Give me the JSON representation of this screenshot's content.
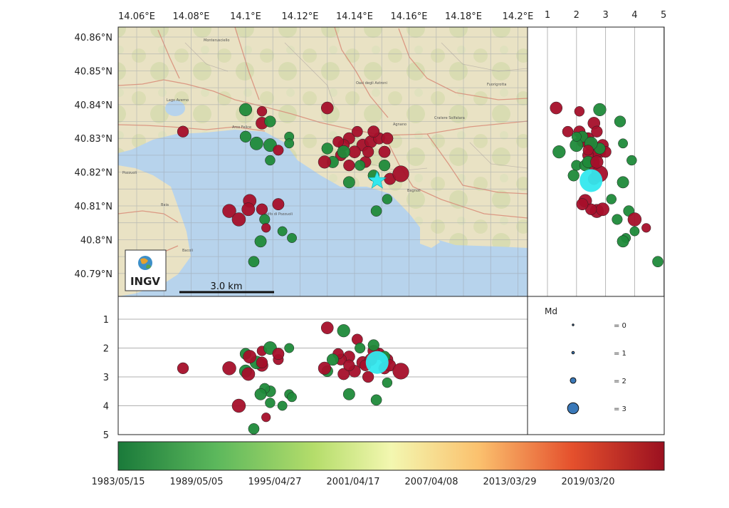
{
  "top_axis": {
    "lon_ticks": [
      "14.06°E",
      "14.08°E",
      "14.1°E",
      "14.12°E",
      "14.14°E",
      "14.16°E",
      "14.18°E",
      "14.2°E"
    ]
  },
  "left_axis": {
    "lat_ticks": [
      "40.86°N",
      "40.85°N",
      "40.84°N",
      "40.83°N",
      "40.82°N",
      "40.81°N",
      "40.8°N",
      "40.79°N"
    ]
  },
  "right_axis": {
    "depth_ticks": [
      "1",
      "2",
      "3",
      "4",
      "5"
    ]
  },
  "bottom_left_axis": {
    "depth_ticks": [
      "1",
      "2",
      "3",
      "4",
      "5"
    ]
  },
  "map": {
    "logo_text": "INGV",
    "scalebar_label": "3.0 km",
    "place_labels": [
      "Monterusciello",
      "Arco Felice",
      "Pozzuoli",
      "Bagnoli",
      "Agnano",
      "Bacoli",
      "Baia",
      "Lago Averno",
      "Cratere Solfatara",
      "Oasi degli Astroni",
      "Fuorigrotta",
      "Golfo di Pozzuoli"
    ]
  },
  "legend": {
    "title": "Md",
    "entries": [
      {
        "label": "= 0",
        "md": 0
      },
      {
        "label": "= 1",
        "md": 1
      },
      {
        "label": "= 2",
        "md": 2
      },
      {
        "label": "= 3",
        "md": 3
      }
    ],
    "marker_color": "#3a78b8"
  },
  "colorbar": {
    "labels": [
      "1983/05/15",
      "1989/05/05",
      "1995/04/27",
      "2001/04/17",
      "2007/04/08",
      "2013/03/29",
      "2019/03/20"
    ],
    "colors": [
      "#1a7a3a",
      "#5cb85c",
      "#b5dd6b",
      "#f3f7b0",
      "#fbc16e",
      "#e5512d",
      "#9b1020"
    ]
  },
  "event_colors": {
    "old": "#1f8a3a",
    "recent": "#a50f2a",
    "mainshock": "#33e8ee"
  },
  "events": [
    {
      "lon": 14.1483,
      "lat": 40.8175,
      "depth": 2.5,
      "md": 3.6,
      "color": "mainshock"
    },
    {
      "lon": 14.143,
      "lat": 40.828,
      "depth": 2.5,
      "md": 2.4,
      "color": "recent"
    },
    {
      "lon": 14.146,
      "lat": 40.829,
      "depth": 2.4,
      "md": 2.4,
      "color": "recent"
    },
    {
      "lon": 14.14,
      "lat": 40.826,
      "depth": 2.8,
      "md": 2.4,
      "color": "recent"
    },
    {
      "lon": 14.149,
      "lat": 40.83,
      "depth": 2.2,
      "md": 2.3,
      "color": "recent"
    },
    {
      "lon": 14.138,
      "lat": 40.83,
      "depth": 2.3,
      "md": 2.3,
      "color": "recent"
    },
    {
      "lon": 14.144,
      "lat": 40.823,
      "depth": 2.6,
      "md": 2.2,
      "color": "recent"
    },
    {
      "lon": 14.151,
      "lat": 40.826,
      "depth": 2.7,
      "md": 2.3,
      "color": "recent"
    },
    {
      "lon": 14.135,
      "lat": 40.825,
      "depth": 2.4,
      "md": 2.2,
      "color": "recent"
    },
    {
      "lon": 14.147,
      "lat": 40.832,
      "depth": 2.1,
      "md": 2.3,
      "color": "recent"
    },
    {
      "lon": 14.141,
      "lat": 40.832,
      "depth": 1.7,
      "md": 2.1,
      "color": "recent"
    },
    {
      "lon": 14.152,
      "lat": 40.83,
      "depth": 2.4,
      "md": 2.3,
      "color": "recent"
    },
    {
      "lon": 14.136,
      "lat": 40.828,
      "depth": 2.9,
      "md": 2.3,
      "color": "recent"
    },
    {
      "lon": 14.145,
      "lat": 40.826,
      "depth": 3.0,
      "md": 2.2,
      "color": "recent"
    },
    {
      "lon": 14.138,
      "lat": 40.822,
      "depth": 2.6,
      "md": 2.2,
      "color": "recent"
    },
    {
      "lon": 14.134,
      "lat": 40.829,
      "depth": 2.2,
      "md": 2.1,
      "color": "recent"
    },
    {
      "lon": 14.142,
      "lat": 40.822,
      "depth": 2.0,
      "md": 2.0,
      "color": "old"
    },
    {
      "lon": 14.147,
      "lat": 40.819,
      "depth": 1.9,
      "md": 2.2,
      "color": "old"
    },
    {
      "lon": 14.151,
      "lat": 40.822,
      "depth": 2.3,
      "md": 2.2,
      "color": "old"
    },
    {
      "lon": 14.138,
      "lat": 40.817,
      "depth": 3.6,
      "md": 2.3,
      "color": "old"
    },
    {
      "lon": 14.132,
      "lat": 40.823,
      "depth": 2.4,
      "md": 2.3,
      "color": "old"
    },
    {
      "lon": 14.13,
      "lat": 40.827,
      "depth": 2.8,
      "md": 2.2,
      "color": "old"
    },
    {
      "lon": 14.153,
      "lat": 40.818,
      "depth": 2.6,
      "md": 2.3,
      "color": "recent"
    },
    {
      "lon": 14.157,
      "lat": 40.8195,
      "depth": 2.8,
      "md": 3.3,
      "color": "recent"
    },
    {
      "lon": 14.129,
      "lat": 40.823,
      "depth": 2.7,
      "md": 2.5,
      "color": "recent"
    },
    {
      "lon": 14.152,
      "lat": 40.812,
      "depth": 3.2,
      "md": 1.9,
      "color": "old"
    },
    {
      "lon": 14.148,
      "lat": 40.8085,
      "depth": 3.8,
      "md": 2.1,
      "color": "old"
    },
    {
      "lon": 14.13,
      "lat": 40.839,
      "depth": 1.3,
      "md": 2.4,
      "color": "recent"
    },
    {
      "lon": 14.136,
      "lat": 40.826,
      "depth": 1.4,
      "md": 2.5,
      "color": "old"
    },
    {
      "lon": 14.1,
      "lat": 40.8385,
      "depth": 2.8,
      "md": 2.5,
      "color": "old"
    },
    {
      "lon": 14.106,
      "lat": 40.838,
      "depth": 2.1,
      "md": 1.9,
      "color": "recent"
    },
    {
      "lon": 14.106,
      "lat": 40.8345,
      "depth": 2.6,
      "md": 2.4,
      "color": "recent"
    },
    {
      "lon": 14.109,
      "lat": 40.835,
      "depth": 3.5,
      "md": 2.2,
      "color": "old"
    },
    {
      "lon": 14.1,
      "lat": 40.8305,
      "depth": 2.2,
      "md": 2.2,
      "color": "old"
    },
    {
      "lon": 14.104,
      "lat": 40.8285,
      "depth": 2.5,
      "md": 2.6,
      "color": "old"
    },
    {
      "lon": 14.109,
      "lat": 40.828,
      "depth": 2.0,
      "md": 2.6,
      "color": "old"
    },
    {
      "lon": 14.112,
      "lat": 40.8265,
      "depth": 2.4,
      "md": 2.0,
      "color": "recent"
    },
    {
      "lon": 14.109,
      "lat": 40.8235,
      "depth": 3.9,
      "md": 1.9,
      "color": "old"
    },
    {
      "lon": 14.116,
      "lat": 40.8305,
      "depth": 2.0,
      "md": 1.8,
      "color": "old"
    },
    {
      "lon": 14.116,
      "lat": 40.8285,
      "depth": 3.6,
      "md": 1.8,
      "color": "old"
    },
    {
      "lon": 14.077,
      "lat": 40.832,
      "depth": 2.7,
      "md": 2.2,
      "color": "recent"
    },
    {
      "lon": 14.094,
      "lat": 40.8085,
      "depth": 2.7,
      "md": 2.7,
      "color": "recent"
    },
    {
      "lon": 14.0975,
      "lat": 40.806,
      "depth": 4.0,
      "md": 2.7,
      "color": "recent"
    },
    {
      "lon": 14.1015,
      "lat": 40.8115,
      "depth": 2.3,
      "md": 2.6,
      "color": "recent"
    },
    {
      "lon": 14.101,
      "lat": 40.809,
      "depth": 2.9,
      "md": 2.6,
      "color": "recent"
    },
    {
      "lon": 14.106,
      "lat": 40.809,
      "depth": 2.5,
      "md": 2.2,
      "color": "recent"
    },
    {
      "lon": 14.107,
      "lat": 40.806,
      "depth": 3.4,
      "md": 2.0,
      "color": "old"
    },
    {
      "lon": 14.1075,
      "lat": 40.8035,
      "depth": 4.4,
      "md": 1.7,
      "color": "recent"
    },
    {
      "lon": 14.112,
      "lat": 40.8105,
      "depth": 2.2,
      "md": 2.3,
      "color": "recent"
    },
    {
      "lon": 14.1135,
      "lat": 40.8025,
      "depth": 4.0,
      "md": 1.8,
      "color": "old"
    },
    {
      "lon": 14.117,
      "lat": 40.8005,
      "depth": 3.7,
      "md": 1.8,
      "color": "old"
    },
    {
      "lon": 14.1055,
      "lat": 40.7995,
      "depth": 3.6,
      "md": 2.3,
      "color": "old"
    },
    {
      "lon": 14.103,
      "lat": 40.7935,
      "depth": 4.8,
      "md": 2.1,
      "color": "old"
    }
  ]
}
